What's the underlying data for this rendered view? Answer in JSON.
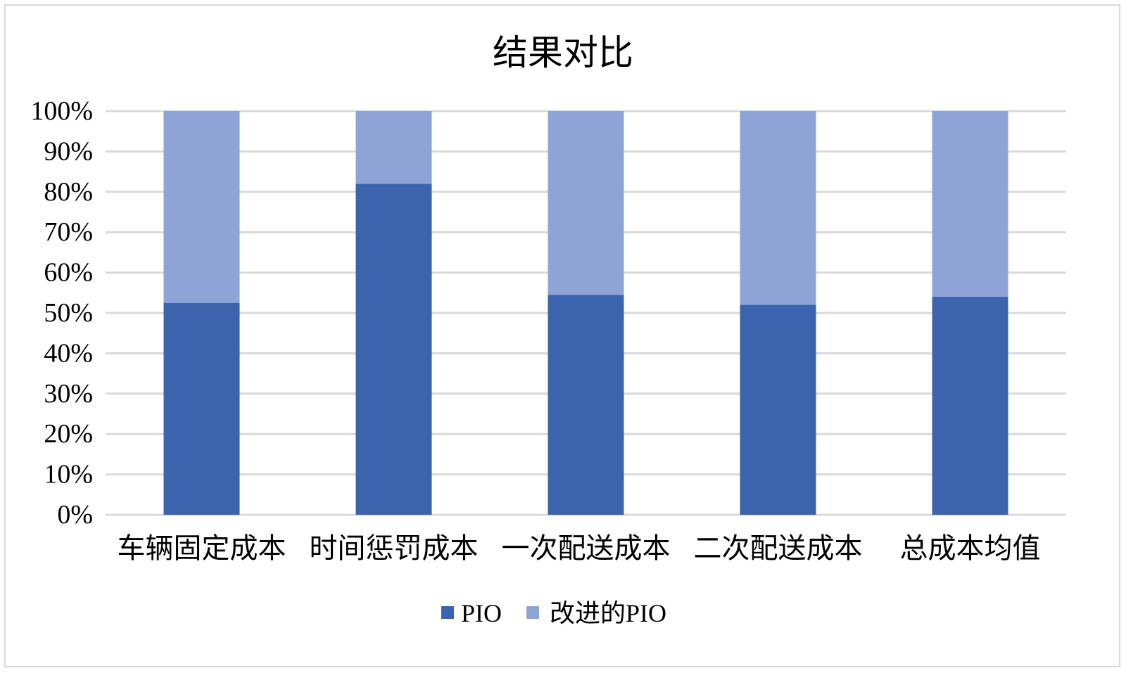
{
  "chart_data": {
    "type": "bar",
    "stacked": "percent",
    "title": "结果对比",
    "categories": [
      "车辆固定成本",
      "时间惩罚成本",
      "一次配送成本",
      "二次配送成本",
      "总成本均值"
    ],
    "series": [
      {
        "name": "PIO",
        "values": [
          52.5,
          82,
          54.5,
          52,
          54
        ],
        "color": "#3C63AD"
      },
      {
        "name": "改进的PIO",
        "values": [
          47.5,
          18,
          45.5,
          48,
          46
        ],
        "color": "#8FA4D6"
      }
    ],
    "ylim": [
      0,
      100
    ],
    "ytick_labels": [
      "0%",
      "10%",
      "20%",
      "30%",
      "40%",
      "50%",
      "60%",
      "70%",
      "80%",
      "90%",
      "100%"
    ],
    "grid": true,
    "legend_position": "bottom",
    "xlabel": "",
    "ylabel": ""
  },
  "colors": {
    "gridline": "#d9d9d9",
    "text": "#000000",
    "border": "#d9d9d9"
  }
}
